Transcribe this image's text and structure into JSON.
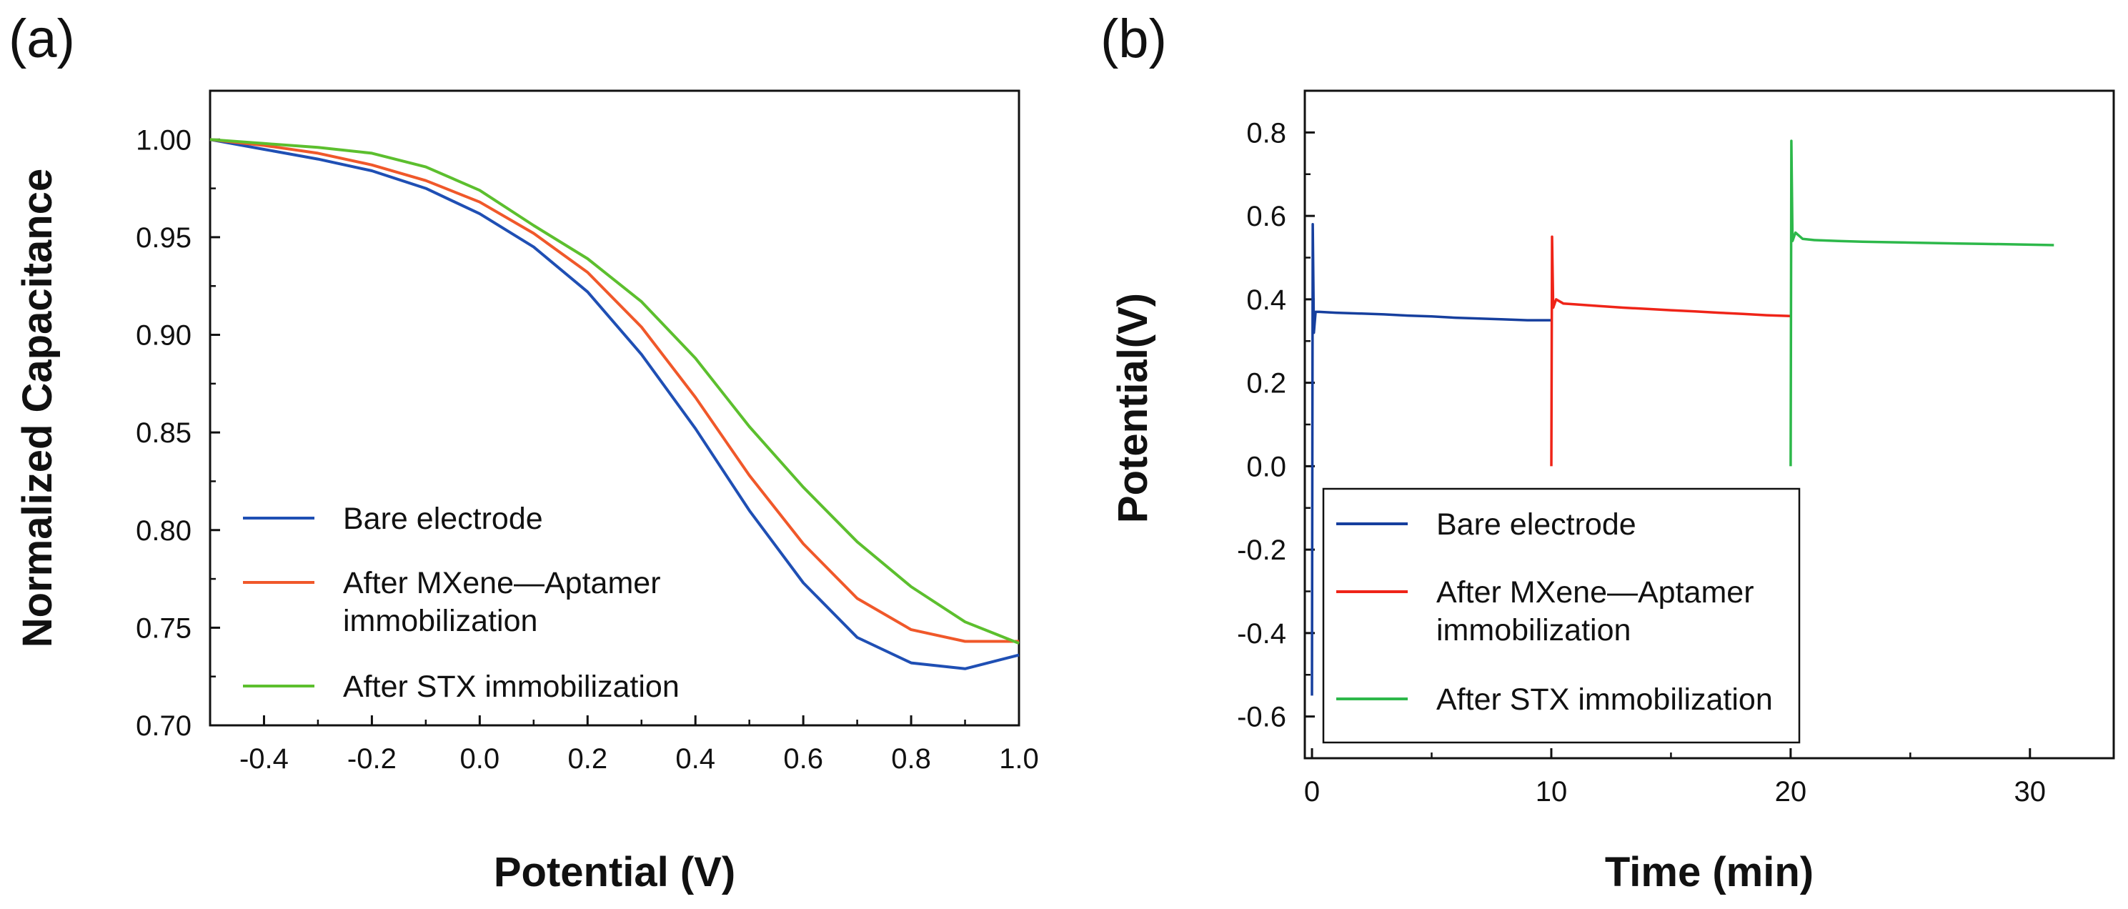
{
  "chart_data": [
    {
      "panel_label": "(a)",
      "type": "line",
      "xlabel": "Potential (V)",
      "ylabel": "Normalized Capacitance",
      "xlim": [
        -0.5,
        1.0
      ],
      "ylim": [
        0.7,
        1.025
      ],
      "xticks": [
        -0.4,
        -0.2,
        0.0,
        0.2,
        0.4,
        0.6,
        0.8,
        1.0
      ],
      "xtick_labels": [
        "-0.4",
        "-0.2",
        "0.0",
        "0.2",
        "0.4",
        "0.6",
        "0.8",
        "1.0"
      ],
      "yticks": [
        0.7,
        0.75,
        0.8,
        0.85,
        0.9,
        0.95,
        1.0
      ],
      "ytick_labels": [
        "0.70",
        "0.75",
        "0.80",
        "0.85",
        "0.90",
        "0.95",
        "1.00"
      ],
      "grid": false,
      "legend_position": "bottom-left",
      "x": [
        -0.5,
        -0.4,
        -0.3,
        -0.2,
        -0.1,
        0.0,
        0.1,
        0.2,
        0.3,
        0.4,
        0.5,
        0.6,
        0.7,
        0.8,
        0.9,
        1.0
      ],
      "series": [
        {
          "name": "Bare electrode",
          "color": "#1f4fb4",
          "values": [
            1.0,
            0.995,
            0.99,
            0.984,
            0.975,
            0.962,
            0.945,
            0.922,
            0.89,
            0.852,
            0.81,
            0.773,
            0.745,
            0.732,
            0.729,
            0.736
          ]
        },
        {
          "name": "After MXene—Aptamer immobilization",
          "color": "#f0582a",
          "values": [
            1.0,
            0.997,
            0.993,
            0.987,
            0.979,
            0.968,
            0.952,
            0.932,
            0.904,
            0.868,
            0.828,
            0.793,
            0.765,
            0.749,
            0.743,
            0.743
          ]
        },
        {
          "name": "After STX immobilization",
          "color": "#5cbf2e",
          "values": [
            1.0,
            0.998,
            0.996,
            0.993,
            0.986,
            0.974,
            0.956,
            0.939,
            0.917,
            0.888,
            0.853,
            0.822,
            0.794,
            0.771,
            0.753,
            0.742
          ]
        }
      ]
    },
    {
      "panel_label": "(b)",
      "type": "line",
      "xlabel": "Time (min)",
      "ylabel": "Potential(V)",
      "xlim": [
        -0.3,
        33.5
      ],
      "ylim": [
        -0.7,
        0.9
      ],
      "xticks": [
        0,
        10,
        20,
        30
      ],
      "xtick_labels": [
        "0",
        "10",
        "20",
        "30"
      ],
      "yticks": [
        -0.6,
        -0.4,
        -0.2,
        0.0,
        0.2,
        0.4,
        0.6,
        0.8
      ],
      "ytick_labels": [
        "-0.6",
        "-0.4",
        "-0.2",
        "0.0",
        "0.2",
        "0.4",
        "0.6",
        "0.8"
      ],
      "grid": false,
      "legend_position": "bottom-left",
      "series": [
        {
          "name": "Bare electrode",
          "color": "#163f9e",
          "x": [
            0,
            0.03,
            0.08,
            0.15,
            0.3,
            1,
            2,
            3,
            4,
            5,
            6,
            7,
            8,
            9,
            10
          ],
          "y": [
            -0.55,
            0.58,
            0.32,
            0.37,
            0.37,
            0.368,
            0.366,
            0.364,
            0.361,
            0.359,
            0.356,
            0.354,
            0.352,
            0.35,
            0.35
          ]
        },
        {
          "name": "After MXene—Aptamer immobilization",
          "color": "#ef2418",
          "x": [
            10,
            10.03,
            10.08,
            10.2,
            10.5,
            11,
            12,
            13,
            14,
            15,
            16,
            17,
            18,
            19,
            20
          ],
          "y": [
            0.0,
            0.55,
            0.38,
            0.4,
            0.39,
            0.388,
            0.384,
            0.38,
            0.377,
            0.374,
            0.371,
            0.368,
            0.365,
            0.362,
            0.36
          ]
        },
        {
          "name": "After STX immobilization",
          "color": "#2db84a",
          "x": [
            20,
            20.03,
            20.08,
            20.2,
            20.5,
            21,
            22,
            23,
            24,
            25,
            26,
            27,
            28,
            29,
            30,
            31
          ],
          "y": [
            0.0,
            0.78,
            0.54,
            0.56,
            0.545,
            0.542,
            0.54,
            0.538,
            0.537,
            0.536,
            0.535,
            0.534,
            0.533,
            0.532,
            0.531,
            0.53
          ]
        }
      ]
    }
  ]
}
